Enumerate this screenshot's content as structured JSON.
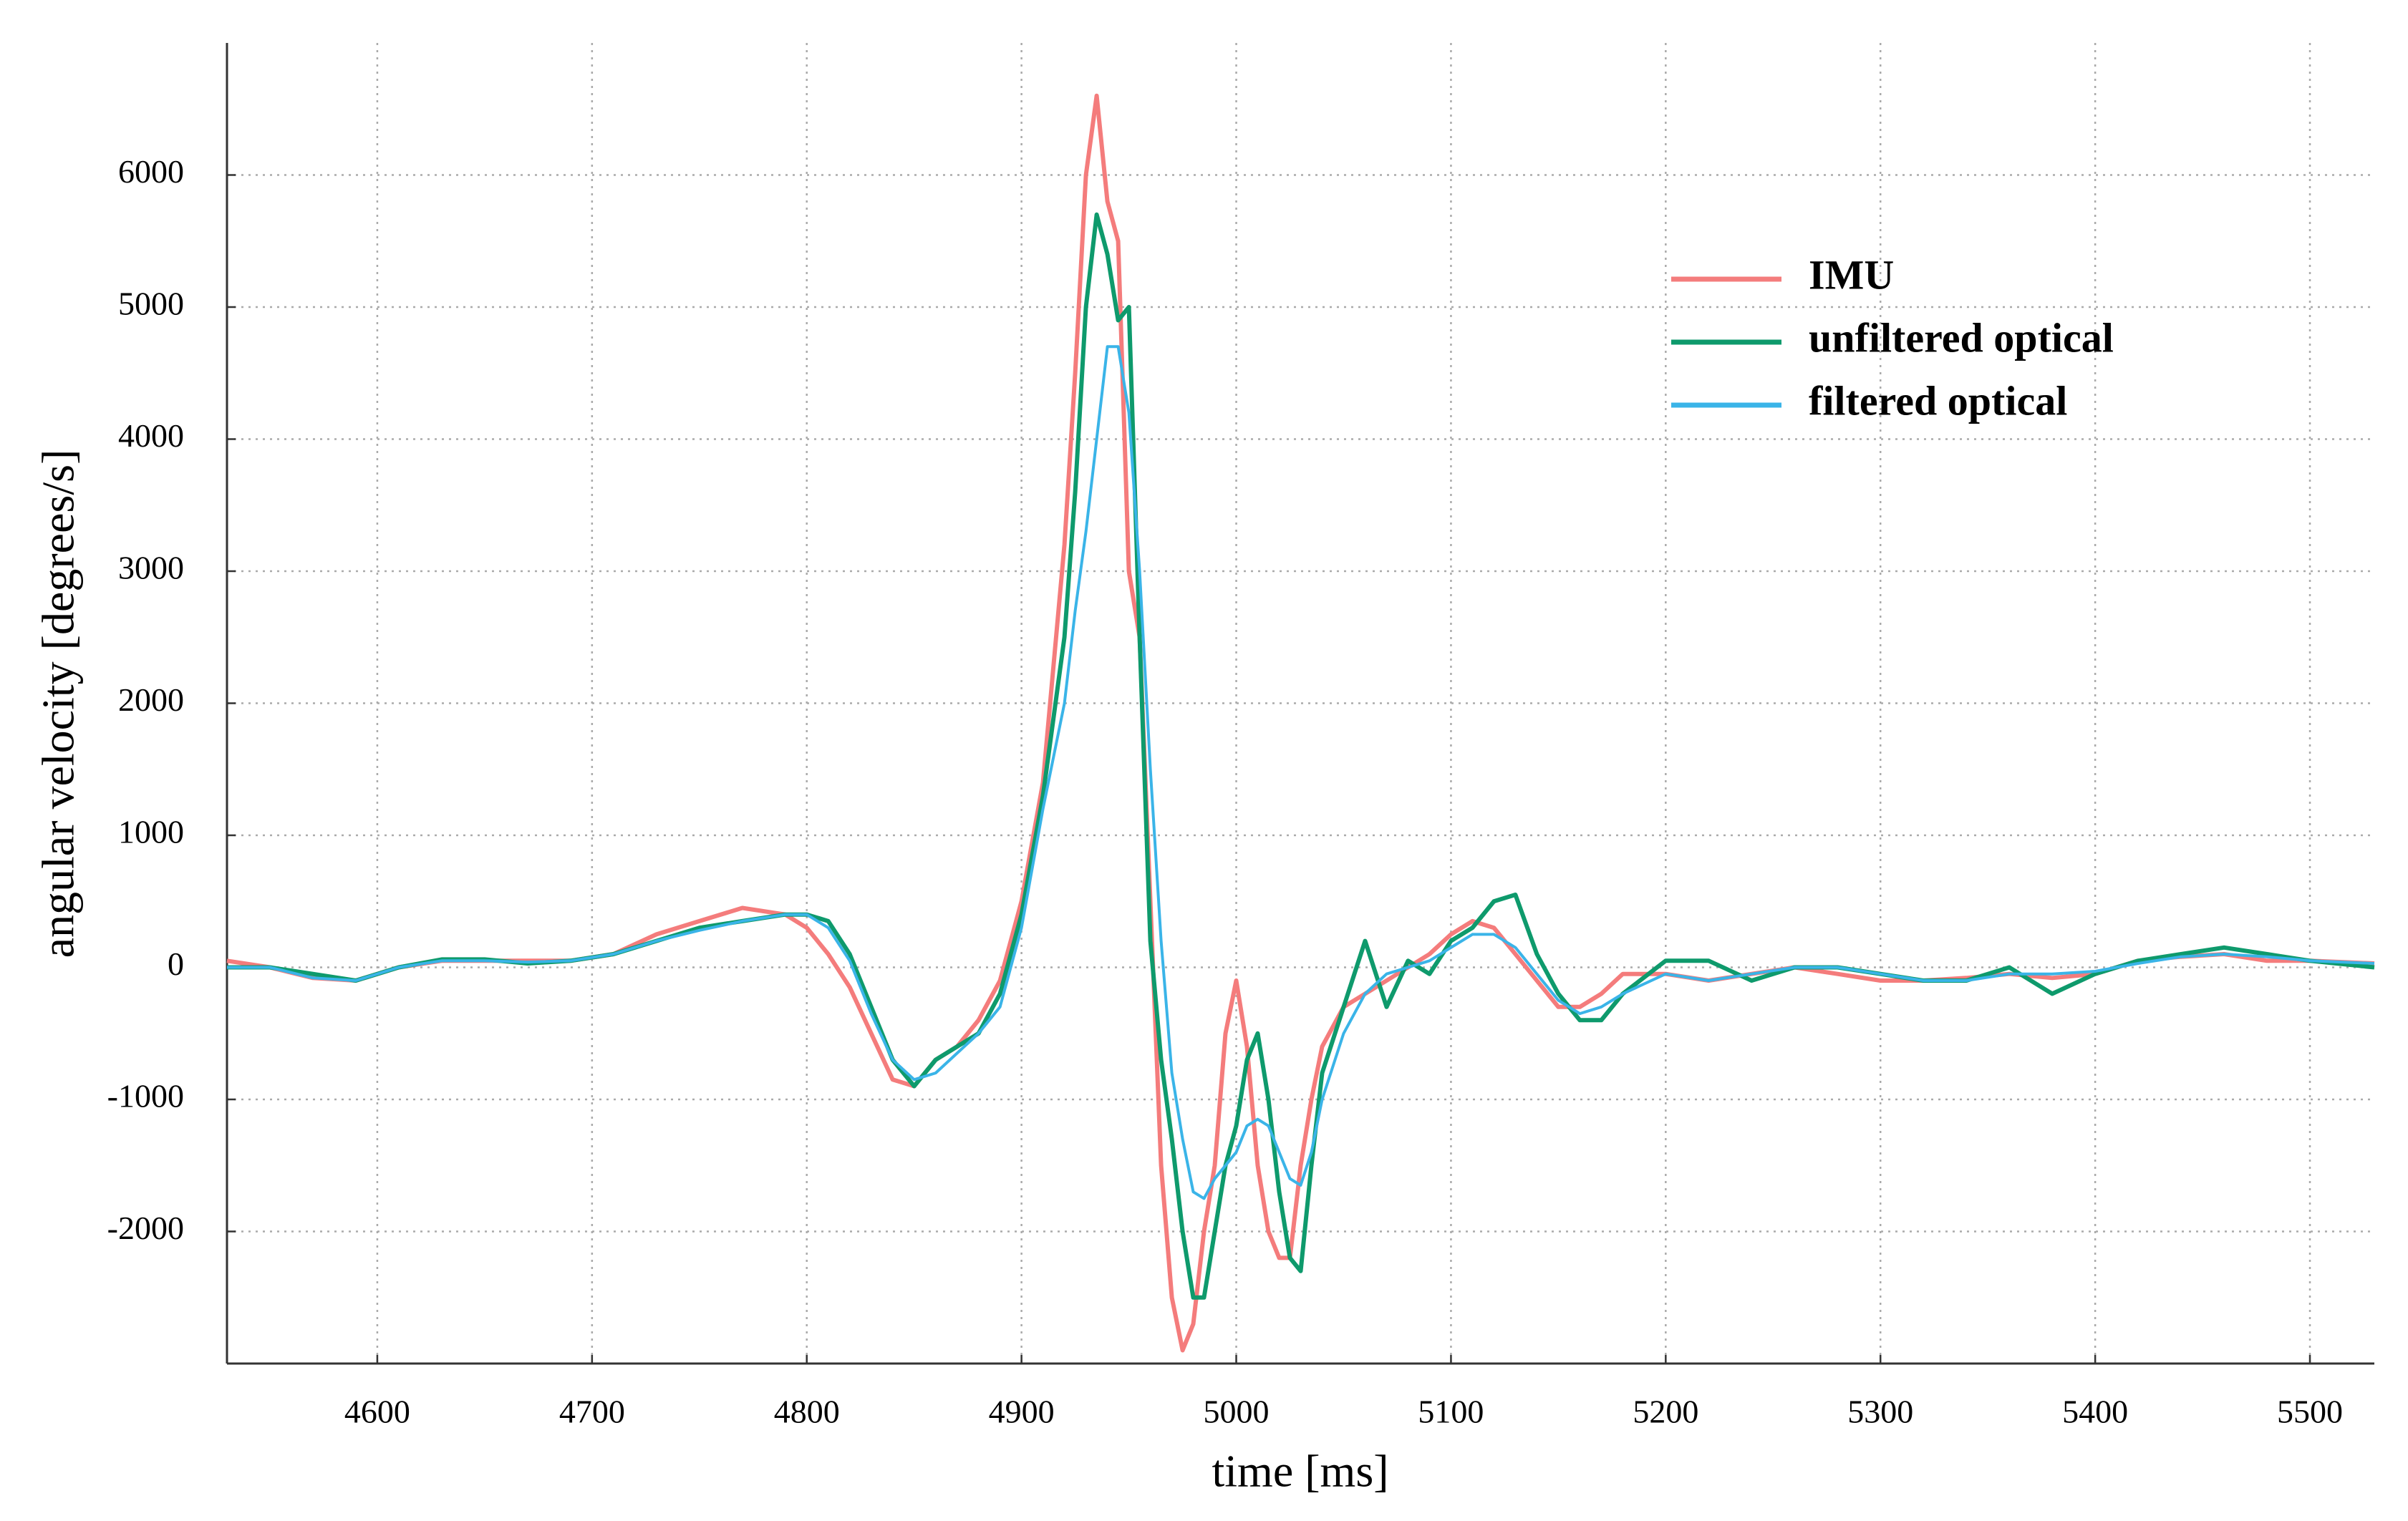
{
  "chart_data": {
    "type": "line",
    "x_label": "time [ms]",
    "y_label": "angular velocity [degrees/s]",
    "x": [
      4530,
      4550,
      4570,
      4590,
      4610,
      4630,
      4650,
      4670,
      4690,
      4710,
      4730,
      4750,
      4770,
      4790,
      4800,
      4810,
      4820,
      4830,
      4840,
      4850,
      4860,
      4870,
      4880,
      4890,
      4900,
      4910,
      4920,
      4925,
      4930,
      4935,
      4940,
      4945,
      4950,
      4955,
      4960,
      4965,
      4970,
      4975,
      4980,
      4985,
      4990,
      4995,
      5000,
      5005,
      5010,
      5015,
      5020,
      5025,
      5030,
      5035,
      5040,
      5050,
      5060,
      5070,
      5080,
      5090,
      5100,
      5110,
      5120,
      5130,
      5140,
      5150,
      5160,
      5170,
      5180,
      5200,
      5220,
      5240,
      5260,
      5280,
      5300,
      5320,
      5340,
      5360,
      5380,
      5400,
      5420,
      5440,
      5460,
      5480,
      5500,
      5530
    ],
    "series": [
      {
        "name": "IMU",
        "color": "#f47c7c",
        "values": [
          50,
          0,
          -80,
          -100,
          0,
          50,
          50,
          50,
          50,
          100,
          250,
          350,
          450,
          400,
          300,
          100,
          -150,
          -500,
          -850,
          -900,
          -700,
          -600,
          -400,
          -100,
          500,
          1400,
          3200,
          4500,
          6000,
          6600,
          5800,
          5500,
          3000,
          2500,
          500,
          -1500,
          -2500,
          -2900,
          -2700,
          -2000,
          -1500,
          -500,
          -100,
          -600,
          -1500,
          -2000,
          -2200,
          -2200,
          -1500,
          -1000,
          -600,
          -300,
          -200,
          -100,
          0,
          100,
          250,
          350,
          300,
          100,
          -100,
          -300,
          -300,
          -200,
          -50,
          -50,
          -100,
          -50,
          0,
          -50,
          -100,
          -100,
          -80,
          -50,
          -80,
          -50,
          50,
          80,
          100,
          50,
          50,
          30
        ]
      },
      {
        "name": "unfiltered optical",
        "color": "#0e9a6c",
        "values": [
          0,
          0,
          -50,
          -100,
          0,
          60,
          60,
          30,
          50,
          100,
          200,
          300,
          350,
          400,
          400,
          350,
          100,
          -300,
          -700,
          -900,
          -700,
          -600,
          -500,
          -200,
          400,
          1300,
          2500,
          3600,
          5000,
          5700,
          5400,
          4900,
          5000,
          2500,
          200,
          -700,
          -1300,
          -2000,
          -2500,
          -2500,
          -2000,
          -1500,
          -1200,
          -700,
          -500,
          -1000,
          -1700,
          -2200,
          -2300,
          -1500,
          -800,
          -300,
          200,
          -300,
          50,
          -50,
          200,
          300,
          500,
          550,
          100,
          -200,
          -400,
          -400,
          -200,
          50,
          50,
          -100,
          0,
          0,
          -50,
          -100,
          -100,
          0,
          -200,
          -50,
          50,
          100,
          150,
          100,
          50,
          0
        ]
      },
      {
        "name": "filtered optical",
        "color": "#3ab4e8",
        "values": [
          0,
          0,
          -80,
          -100,
          0,
          50,
          50,
          40,
          50,
          100,
          200,
          280,
          350,
          400,
          400,
          300,
          50,
          -350,
          -700,
          -850,
          -800,
          -650,
          -500,
          -300,
          300,
          1200,
          2000,
          2700,
          3300,
          4000,
          4700,
          4700,
          4200,
          3000,
          1500,
          200,
          -800,
          -1300,
          -1700,
          -1750,
          -1600,
          -1500,
          -1400,
          -1200,
          -1150,
          -1200,
          -1400,
          -1600,
          -1650,
          -1400,
          -1000,
          -500,
          -200,
          -50,
          0,
          50,
          150,
          250,
          250,
          150,
          -50,
          -250,
          -350,
          -300,
          -200,
          -50,
          -100,
          -50,
          0,
          0,
          -50,
          -100,
          -100,
          -50,
          -50,
          -30,
          30,
          80,
          100,
          80,
          50,
          30
        ]
      }
    ],
    "xlim": [
      4530,
      5530
    ],
    "xticks": [
      4600,
      4700,
      4800,
      4900,
      5000,
      5100,
      5200,
      5300,
      5400,
      5500
    ],
    "ylim": [
      -3000,
      7000
    ],
    "yticks": [
      -2000,
      -1000,
      0,
      1000,
      2000,
      3000,
      4000,
      5000,
      6000
    ],
    "grid": true,
    "legend": "upper right"
  }
}
